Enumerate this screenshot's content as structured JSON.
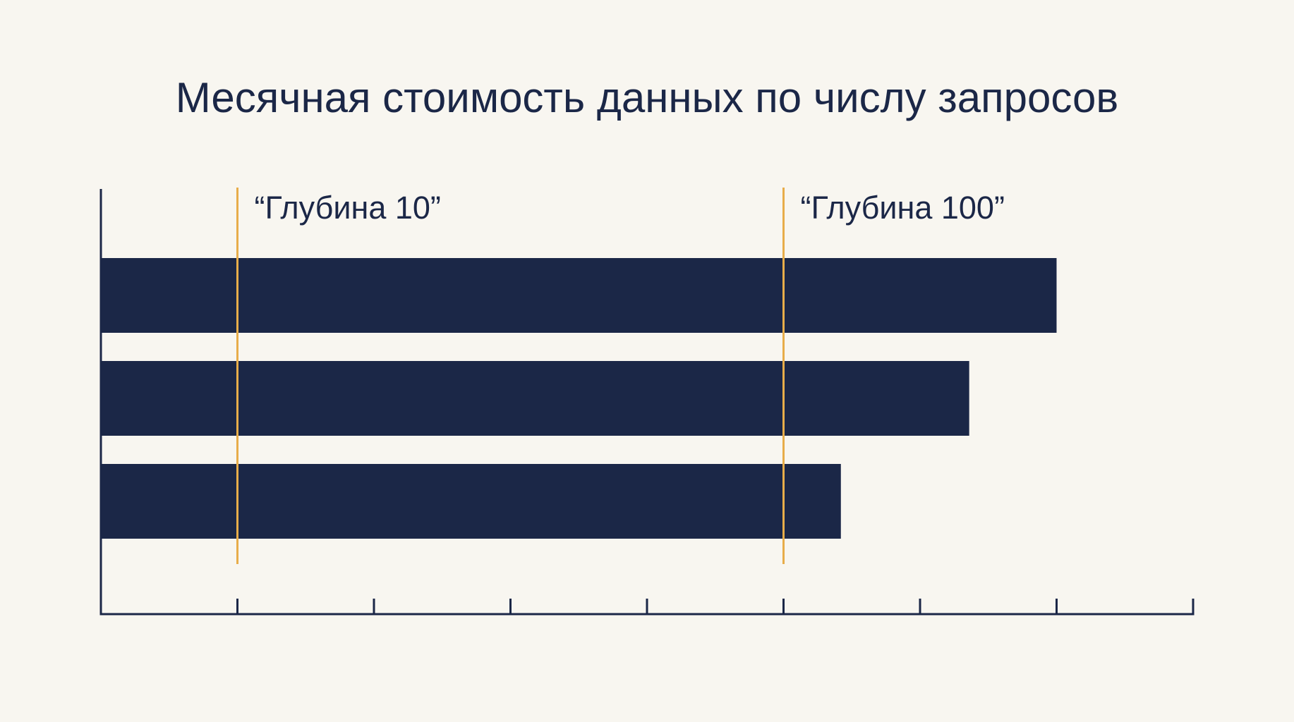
{
  "chart_data": {
    "type": "bar",
    "orientation": "horizontal",
    "title": "Месячная стоимость данных по числу запросов",
    "xlabel": "",
    "ylabel": "",
    "x_ticks": 8,
    "xlim": [
      0,
      8
    ],
    "grid": false,
    "legend": "none",
    "categories": [
      "",
      "",
      ""
    ],
    "values": [
      7,
      6.36,
      5.42
    ],
    "reference_lines": [
      {
        "label": "“Глубина 10”",
        "value": 1
      },
      {
        "label": "“Глубина 100”",
        "value": 5
      }
    ],
    "colors": {
      "bar": "#1b2747",
      "reference_line": "#e8ad4a",
      "axis": "#1b2747",
      "background": "#f8f6f0"
    }
  }
}
